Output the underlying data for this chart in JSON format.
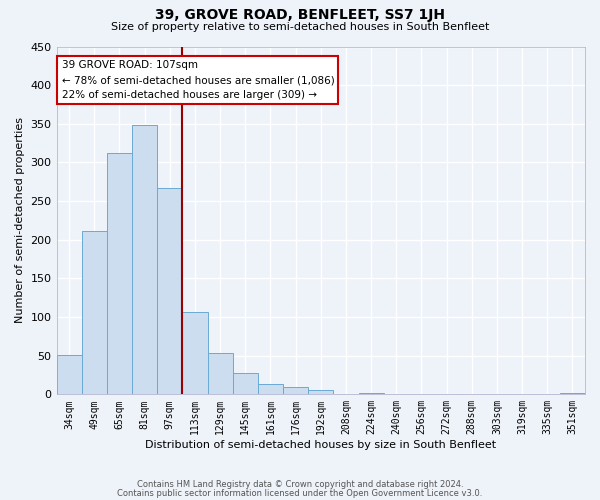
{
  "title": "39, GROVE ROAD, BENFLEET, SS7 1JH",
  "subtitle": "Size of property relative to semi-detached houses in South Benfleet",
  "xlabel": "Distribution of semi-detached houses by size in South Benfleet",
  "ylabel": "Number of semi-detached properties",
  "bar_color": "#ccddf0",
  "bar_edge_color": "#6aaad4",
  "background_color": "#eef2f9",
  "grid_color": "#ffffff",
  "categories": [
    "34sqm",
    "49sqm",
    "65sqm",
    "81sqm",
    "97sqm",
    "113sqm",
    "129sqm",
    "145sqm",
    "161sqm",
    "176sqm",
    "192sqm",
    "208sqm",
    "224sqm",
    "240sqm",
    "256sqm",
    "272sqm",
    "288sqm",
    "303sqm",
    "319sqm",
    "335sqm",
    "351sqm"
  ],
  "bar_heights": [
    51,
    211,
    312,
    349,
    267,
    106,
    54,
    27,
    13,
    10,
    5,
    0,
    2,
    0,
    0,
    0,
    0,
    0,
    0,
    0,
    2
  ],
  "ylim": [
    0,
    450
  ],
  "yticks": [
    0,
    50,
    100,
    150,
    200,
    250,
    300,
    350,
    400,
    450
  ],
  "property_line_label": "39 GROVE ROAD: 107sqm",
  "annotation_smaller": "← 78% of semi-detached houses are smaller (1,086)",
  "annotation_larger": "22% of semi-detached houses are larger (309) →",
  "footer_line1": "Contains HM Land Registry data © Crown copyright and database right 2024.",
  "footer_line2": "Contains public sector information licensed under the Open Government Licence v3.0."
}
